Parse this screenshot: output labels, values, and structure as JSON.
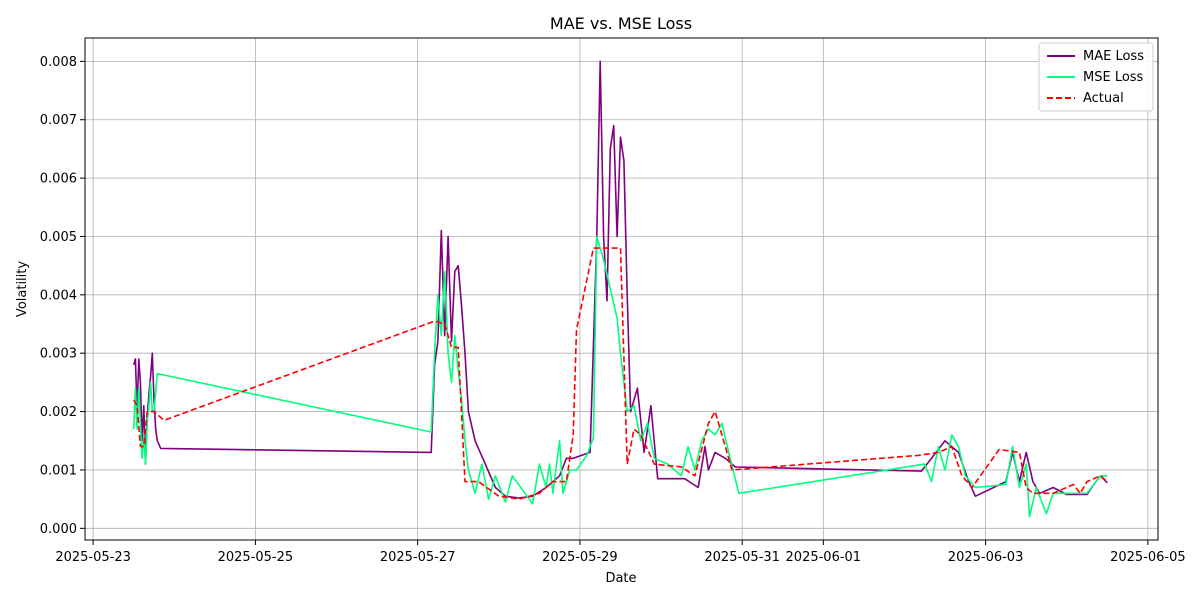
{
  "chart_data": {
    "type": "line",
    "title": "MAE vs. MSE Loss",
    "xlabel": "Date",
    "ylabel": "Volatility",
    "x_type": "datetime",
    "xlim": [
      "2025-05-22T21:36",
      "2025-06-05T03:00"
    ],
    "ylim": [
      -0.0002,
      0.0084
    ],
    "x_ticks": [
      "2025-05-23",
      "2025-05-25",
      "2025-05-27",
      "2025-05-29",
      "2025-05-31",
      "2025-06-01",
      "2025-06-03",
      "2025-06-05"
    ],
    "y_ticks": [
      0.0,
      0.001,
      0.002,
      0.003,
      0.004,
      0.005,
      0.006,
      0.007,
      0.008
    ],
    "y_tick_labels": [
      "0.000",
      "0.001",
      "0.002",
      "0.003",
      "0.004",
      "0.005",
      "0.006",
      "0.007",
      "0.008"
    ],
    "grid": true,
    "legend_position": "top-right",
    "series": [
      {
        "name": "MAE Loss",
        "color": "#800080",
        "dash": "solid",
        "points": [
          [
            "2025-05-23T12:00",
            0.0028
          ],
          [
            "2025-05-23T12:30",
            0.0029
          ],
          [
            "2025-05-23T13:00",
            0.002
          ],
          [
            "2025-05-23T13:30",
            0.0029
          ],
          [
            "2025-05-23T14:00",
            0.0025
          ],
          [
            "2025-05-23T14:30",
            0.0015
          ],
          [
            "2025-05-23T15:00",
            0.0021
          ],
          [
            "2025-05-23T15:30",
            0.0011
          ],
          [
            "2025-05-23T16:00",
            0.0019
          ],
          [
            "2025-05-23T16:30",
            0.0023
          ],
          [
            "2025-05-23T17:00",
            0.0026
          ],
          [
            "2025-05-23T17:30",
            0.003
          ],
          [
            "2025-05-23T18:00",
            0.0022
          ],
          [
            "2025-05-23T18:30",
            0.0017
          ],
          [
            "2025-05-23T19:00",
            0.0015
          ],
          [
            "2025-05-23T20:00",
            0.00137
          ],
          [
            "2025-05-27T04:00",
            0.0013
          ],
          [
            "2025-05-27T05:00",
            0.0028
          ],
          [
            "2025-05-27T06:00",
            0.0032
          ],
          [
            "2025-05-27T07:00",
            0.0051
          ],
          [
            "2025-05-27T08:00",
            0.0033
          ],
          [
            "2025-05-27T09:00",
            0.005
          ],
          [
            "2025-05-27T10:00",
            0.0032
          ],
          [
            "2025-05-27T11:00",
            0.0044
          ],
          [
            "2025-05-27T12:00",
            0.0045
          ],
          [
            "2025-05-27T13:00",
            0.0038
          ],
          [
            "2025-05-27T14:00",
            0.003
          ],
          [
            "2025-05-27T15:00",
            0.002
          ],
          [
            "2025-05-27T17:00",
            0.0015
          ],
          [
            "2025-05-27T20:00",
            0.0011
          ],
          [
            "2025-05-27T23:00",
            0.0007
          ],
          [
            "2025-05-28T02:00",
            0.00055
          ],
          [
            "2025-05-28T06:00",
            0.00052
          ],
          [
            "2025-05-28T10:00",
            0.00055
          ],
          [
            "2025-05-28T14:00",
            0.0007
          ],
          [
            "2025-05-28T18:00",
            0.0009
          ],
          [
            "2025-05-28T20:00",
            0.0012
          ],
          [
            "2025-05-28T22:00",
            0.0012
          ],
          [
            "2025-05-29T03:00",
            0.0013
          ],
          [
            "2025-05-29T05:00",
            0.005
          ],
          [
            "2025-05-29T06:00",
            0.008
          ],
          [
            "2025-05-29T07:00",
            0.005
          ],
          [
            "2025-05-29T08:00",
            0.0039
          ],
          [
            "2025-05-29T09:00",
            0.0065
          ],
          [
            "2025-05-29T10:00",
            0.0069
          ],
          [
            "2025-05-29T11:00",
            0.005
          ],
          [
            "2025-05-29T12:00",
            0.0067
          ],
          [
            "2025-05-29T13:00",
            0.0063
          ],
          [
            "2025-05-29T14:00",
            0.004
          ],
          [
            "2025-05-29T15:00",
            0.002
          ],
          [
            "2025-05-29T17:00",
            0.0024
          ],
          [
            "2025-05-29T19:00",
            0.0013
          ],
          [
            "2025-05-29T21:00",
            0.0021
          ],
          [
            "2025-05-29T23:00",
            0.00085
          ],
          [
            "2025-05-30T07:00",
            0.00085
          ],
          [
            "2025-05-30T11:00",
            0.0007
          ],
          [
            "2025-05-30T13:00",
            0.0014
          ],
          [
            "2025-05-30T14:00",
            0.001
          ],
          [
            "2025-05-30T16:00",
            0.0013
          ],
          [
            "2025-05-30T19:00",
            0.0012
          ],
          [
            "2025-05-30T22:00",
            0.00105
          ],
          [
            "2025-06-02T05:00",
            0.00098
          ],
          [
            "2025-06-02T08:00",
            0.0012
          ],
          [
            "2025-06-02T12:00",
            0.0015
          ],
          [
            "2025-06-02T16:00",
            0.0013
          ],
          [
            "2025-06-02T19:00",
            0.0008
          ],
          [
            "2025-06-02T21:00",
            0.00055
          ],
          [
            "2025-06-03T06:00",
            0.0008
          ],
          [
            "2025-06-03T08:00",
            0.0013
          ],
          [
            "2025-06-03T10:00",
            0.0008
          ],
          [
            "2025-06-03T12:00",
            0.0013
          ],
          [
            "2025-06-03T14:00",
            0.0008
          ],
          [
            "2025-06-03T16:00",
            0.0006
          ],
          [
            "2025-06-03T20:00",
            0.0007
          ],
          [
            "2025-06-04T00:00",
            0.00058
          ],
          [
            "2025-06-04T06:00",
            0.00058
          ],
          [
            "2025-06-04T08:00",
            0.00075
          ],
          [
            "2025-06-04T10:00",
            0.0009
          ],
          [
            "2025-06-04T12:00",
            0.00078
          ]
        ]
      },
      {
        "name": "MSE Loss",
        "color": "#00ff7f",
        "dash": "solid",
        "points": [
          [
            "2025-05-23T12:00",
            0.0017
          ],
          [
            "2025-05-23T12:30",
            0.0024
          ],
          [
            "2025-05-23T13:00",
            0.0017
          ],
          [
            "2025-05-23T13:30",
            0.0024
          ],
          [
            "2025-05-23T14:00",
            0.0018
          ],
          [
            "2025-05-23T14:30",
            0.0012
          ],
          [
            "2025-05-23T15:00",
            0.0016
          ],
          [
            "2025-05-23T15:30",
            0.0011
          ],
          [
            "2025-05-23T16:00",
            0.0018
          ],
          [
            "2025-05-23T16:30",
            0.0021
          ],
          [
            "2025-05-23T17:00",
            0.0025
          ],
          [
            "2025-05-23T17:30",
            0.002
          ],
          [
            "2025-05-23T18:00",
            0.002
          ],
          [
            "2025-05-23T19:00",
            0.00265
          ],
          [
            "2025-05-27T04:00",
            0.00165
          ],
          [
            "2025-05-27T05:00",
            0.003
          ],
          [
            "2025-05-27T06:00",
            0.004
          ],
          [
            "2025-05-27T07:00",
            0.0033
          ],
          [
            "2025-05-27T08:00",
            0.0044
          ],
          [
            "2025-05-27T09:00",
            0.003
          ],
          [
            "2025-05-27T10:00",
            0.0025
          ],
          [
            "2025-05-27T11:00",
            0.0033
          ],
          [
            "2025-05-27T12:00",
            0.0027
          ],
          [
            "2025-05-27T13:00",
            0.0022
          ],
          [
            "2025-05-27T14:00",
            0.0015
          ],
          [
            "2025-05-27T15:00",
            0.001
          ],
          [
            "2025-05-27T17:00",
            0.0006
          ],
          [
            "2025-05-27T19:00",
            0.0011
          ],
          [
            "2025-05-27T21:00",
            0.0005
          ],
          [
            "2025-05-27T23:00",
            0.0009
          ],
          [
            "2025-05-28T02:00",
            0.00045
          ],
          [
            "2025-05-28T04:00",
            0.0009
          ],
          [
            "2025-05-28T10:00",
            0.00042
          ],
          [
            "2025-05-28T12:00",
            0.0011
          ],
          [
            "2025-05-28T14:00",
            0.0007
          ],
          [
            "2025-05-28T15:00",
            0.0011
          ],
          [
            "2025-05-28T16:00",
            0.0006
          ],
          [
            "2025-05-28T18:00",
            0.0015
          ],
          [
            "2025-05-28T19:00",
            0.0006
          ],
          [
            "2025-05-28T21:00",
            0.001
          ],
          [
            "2025-05-28T23:00",
            0.001
          ],
          [
            "2025-05-29T02:00",
            0.00125
          ],
          [
            "2025-05-29T04:00",
            0.00155
          ],
          [
            "2025-05-29T05:00",
            0.005
          ],
          [
            "2025-05-29T07:00",
            0.0046
          ],
          [
            "2025-05-29T09:00",
            0.0041
          ],
          [
            "2025-05-29T11:00",
            0.0036
          ],
          [
            "2025-05-29T12:00",
            0.003
          ],
          [
            "2025-05-29T14:00",
            0.002
          ],
          [
            "2025-05-29T16:00",
            0.0021
          ],
          [
            "2025-05-29T18:00",
            0.0015
          ],
          [
            "2025-05-29T20:00",
            0.0018
          ],
          [
            "2025-05-29T22:00",
            0.0012
          ],
          [
            "2025-05-30T02:00",
            0.0011
          ],
          [
            "2025-05-30T06:00",
            0.0009
          ],
          [
            "2025-05-30T08:00",
            0.0014
          ],
          [
            "2025-05-30T10:00",
            0.001
          ],
          [
            "2025-05-30T12:00",
            0.0015
          ],
          [
            "2025-05-30T14:00",
            0.0017
          ],
          [
            "2025-05-30T16:00",
            0.0016
          ],
          [
            "2025-05-30T18:00",
            0.0018
          ],
          [
            "2025-05-30T20:00",
            0.0013
          ],
          [
            "2025-05-30T23:00",
            0.0006
          ],
          [
            "2025-06-02T06:00",
            0.0011
          ],
          [
            "2025-06-02T08:00",
            0.0008
          ],
          [
            "2025-06-02T10:00",
            0.0014
          ],
          [
            "2025-06-02T12:00",
            0.001
          ],
          [
            "2025-06-02T14:00",
            0.0016
          ],
          [
            "2025-06-02T16:00",
            0.0014
          ],
          [
            "2025-06-02T18:00",
            0.0009
          ],
          [
            "2025-06-02T21:00",
            0.0007
          ],
          [
            "2025-06-03T06:00",
            0.00075
          ],
          [
            "2025-06-03T08:00",
            0.0014
          ],
          [
            "2025-06-03T10:00",
            0.0007
          ],
          [
            "2025-06-03T12:00",
            0.0011
          ],
          [
            "2025-06-03T13:00",
            0.0002
          ],
          [
            "2025-06-03T15:00",
            0.0007
          ],
          [
            "2025-06-03T18:00",
            0.00025
          ],
          [
            "2025-06-03T20:00",
            0.0006
          ],
          [
            "2025-06-04T06:00",
            0.0006
          ],
          [
            "2025-06-04T10:00",
            0.0009
          ],
          [
            "2025-06-04T12:00",
            0.0009
          ]
        ]
      },
      {
        "name": "Actual",
        "color": "#ff0000",
        "dash": "dashed",
        "points": [
          [
            "2025-05-23T12:00",
            0.0022
          ],
          [
            "2025-05-23T13:00",
            0.0021
          ],
          [
            "2025-05-23T14:00",
            0.0014
          ],
          [
            "2025-05-23T15:00",
            0.0014
          ],
          [
            "2025-05-23T16:00",
            0.002
          ],
          [
            "2025-05-23T18:00",
            0.002
          ],
          [
            "2025-05-23T21:00",
            0.00185
          ],
          [
            "2025-05-27T05:00",
            0.00355
          ],
          [
            "2025-05-27T08:00",
            0.0035
          ],
          [
            "2025-05-27T10:00",
            0.0031
          ],
          [
            "2025-05-27T12:00",
            0.0031
          ],
          [
            "2025-05-27T14:00",
            0.0008
          ],
          [
            "2025-05-27T18:00",
            0.0008
          ],
          [
            "2025-05-28T00:00",
            0.00055
          ],
          [
            "2025-05-28T06:00",
            0.0005
          ],
          [
            "2025-05-28T12:00",
            0.0006
          ],
          [
            "2025-05-28T16:00",
            0.0008
          ],
          [
            "2025-05-28T20:00",
            0.0008
          ],
          [
            "2025-05-28T22:00",
            0.0016
          ],
          [
            "2025-05-28T23:00",
            0.0034
          ],
          [
            "2025-05-29T04:00",
            0.0048
          ],
          [
            "2025-05-29T12:00",
            0.0048
          ],
          [
            "2025-05-29T14:00",
            0.0011
          ],
          [
            "2025-05-29T16:00",
            0.0017
          ],
          [
            "2025-05-29T18:00",
            0.0016
          ],
          [
            "2025-05-29T22:00",
            0.0011
          ],
          [
            "2025-05-30T06:00",
            0.00105
          ],
          [
            "2025-05-30T10:00",
            0.0009
          ],
          [
            "2025-05-30T14:00",
            0.0018
          ],
          [
            "2025-05-30T16:00",
            0.002
          ],
          [
            "2025-05-30T18:00",
            0.0016
          ],
          [
            "2025-05-30T21:00",
            0.001
          ],
          [
            "2025-06-02T04:00",
            0.00125
          ],
          [
            "2025-06-02T10:00",
            0.0013
          ],
          [
            "2025-06-02T14:00",
            0.0014
          ],
          [
            "2025-06-02T17:00",
            0.0009
          ],
          [
            "2025-06-02T20:00",
            0.0007
          ],
          [
            "2025-06-03T04:00",
            0.00135
          ],
          [
            "2025-06-03T10:00",
            0.0013
          ],
          [
            "2025-06-03T12:00",
            0.0007
          ],
          [
            "2025-06-03T14:00",
            0.0006
          ],
          [
            "2025-06-03T20:00",
            0.0006
          ],
          [
            "2025-06-04T02:00",
            0.00075
          ],
          [
            "2025-06-04T04:00",
            0.0006
          ],
          [
            "2025-06-04T06:00",
            0.0008
          ],
          [
            "2025-06-04T10:00",
            0.0009
          ],
          [
            "2025-06-04T12:00",
            0.0008
          ]
        ]
      }
    ]
  }
}
